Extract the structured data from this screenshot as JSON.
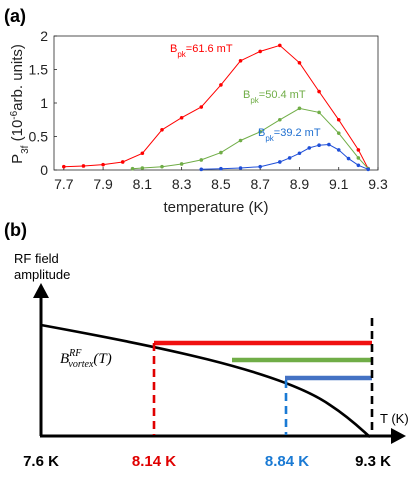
{
  "panel_a": {
    "label": "(a)"
  },
  "panel_b": {
    "label": "(b)",
    "ylabel_line1": "RF field",
    "ylabel_line2": "amplitude",
    "xlabel": "T (K)",
    "curve_label_main": "B",
    "curve_label_sup": "RF",
    "curve_label_sub": "vortex",
    "curve_label_arg": "(T)",
    "ticks": [
      {
        "label": "7.6 K",
        "color": "#000000"
      },
      {
        "label": "8.14 K",
        "color": "#e00000"
      },
      {
        "label": "8.84 K",
        "color": "#1a7ad4"
      },
      {
        "label": "9.3 K",
        "color": "#000000"
      }
    ],
    "colors": {
      "red": "#f01010",
      "green": "#70ad47",
      "blue": "#4472c4",
      "red_dashed": "#e00000",
      "blue_dashed": "#1a7ad4"
    }
  },
  "chart_data": [
    {
      "type": "line",
      "xlabel": "temperature (K)",
      "ylabel_main": "P",
      "ylabel_sub": "3f",
      "ylabel_rest_pre": " (10",
      "ylabel_rest_sup": "-6",
      "ylabel_rest_post": "arb. units)",
      "xlim": [
        7.65,
        9.3
      ],
      "ylim": [
        0,
        2
      ],
      "xticks": [
        "7.7",
        "7.9",
        "8.1",
        "8.3",
        "8.5",
        "8.7",
        "8.9",
        "9.1",
        "9.3"
      ],
      "yticks": [
        "0",
        "0.5",
        "1",
        "1.5",
        "2"
      ],
      "series": [
        {
          "label_main": "B",
          "label_sub": "pk",
          "label_rest": "=61.6 mT",
          "color": "#ff0000",
          "x": [
            7.7,
            7.8,
            7.9,
            8.0,
            8.1,
            8.2,
            8.3,
            8.4,
            8.5,
            8.6,
            8.7,
            8.8,
            8.9,
            9.0,
            9.1,
            9.2,
            9.25
          ],
          "y": [
            0.05,
            0.06,
            0.08,
            0.12,
            0.25,
            0.6,
            0.78,
            0.94,
            1.27,
            1.63,
            1.77,
            1.86,
            1.6,
            1.17,
            0.75,
            0.3,
            0.02
          ]
        },
        {
          "label_main": "B",
          "label_sub": "pk",
          "label_rest": "=50.4 mT",
          "color": "#70ad47",
          "x": [
            8.05,
            8.1,
            8.2,
            8.3,
            8.4,
            8.5,
            8.6,
            8.7,
            8.8,
            8.9,
            9.0,
            9.1,
            9.2,
            9.25
          ],
          "y": [
            0.02,
            0.03,
            0.05,
            0.09,
            0.15,
            0.26,
            0.44,
            0.57,
            0.75,
            0.92,
            0.86,
            0.55,
            0.18,
            0.02
          ]
        },
        {
          "label_main": "B",
          "label_sub": "pk",
          "label_rest": "=39.2 mT",
          "color": "#1f4fd8",
          "x": [
            8.4,
            8.5,
            8.6,
            8.7,
            8.8,
            8.85,
            8.9,
            8.95,
            9.0,
            9.05,
            9.1,
            9.15,
            9.2,
            9.25
          ],
          "y": [
            0.01,
            0.02,
            0.03,
            0.05,
            0.12,
            0.18,
            0.25,
            0.33,
            0.37,
            0.38,
            0.3,
            0.17,
            0.07,
            0.01
          ]
        }
      ]
    }
  ]
}
